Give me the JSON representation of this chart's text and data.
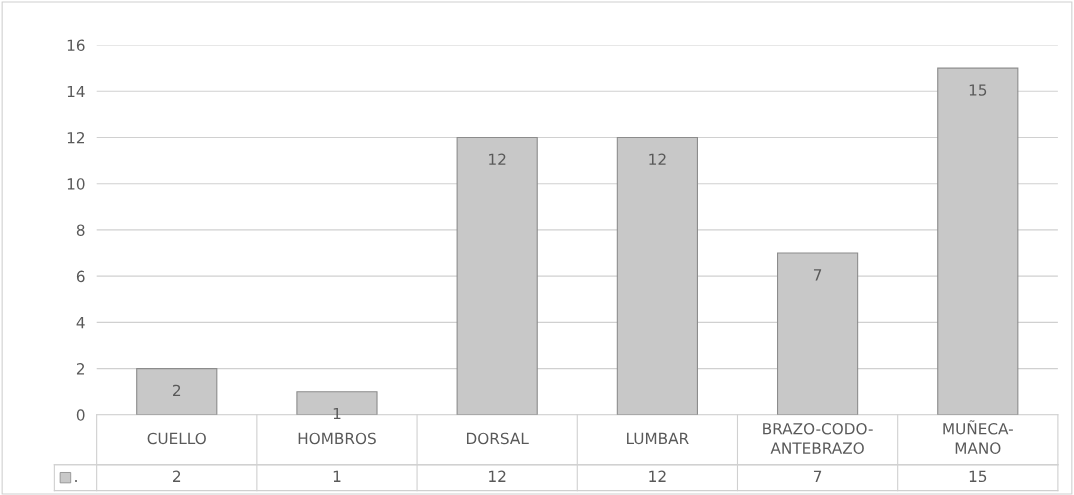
{
  "chart_data": {
    "type": "bar",
    "categories": [
      "CUELLO",
      "HOMBROS",
      "DORSAL",
      "LUMBAR",
      "BRAZO-CODO-ANTEBRAZO",
      "MUÑECA-MANO"
    ],
    "series": [
      {
        "name": ".",
        "color": "#c8c8c8",
        "values": [
          2,
          1,
          12,
          12,
          7,
          15
        ],
        "value_labels": [
          "2",
          "1",
          "12",
          "12",
          "7",
          "15"
        ]
      }
    ],
    "ylim": [
      0,
      16
    ],
    "yticks": [
      0,
      2,
      4,
      6,
      8,
      10,
      12,
      14,
      16
    ],
    "annotations": [
      "2",
      "1",
      "12",
      "12",
      "7",
      "15"
    ],
    "grid": "y",
    "legend": "bottom"
  }
}
